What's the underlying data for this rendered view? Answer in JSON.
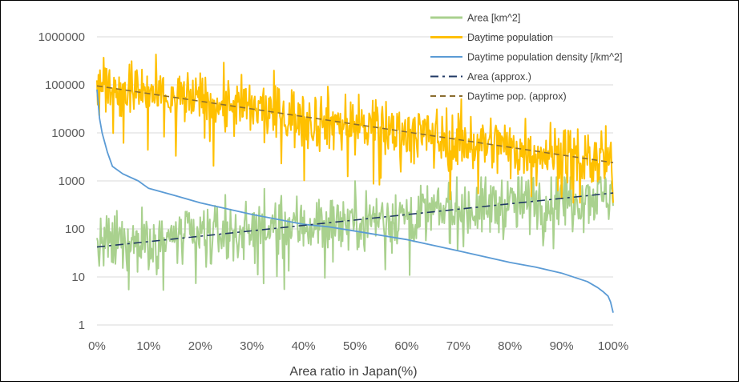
{
  "chart_data": {
    "type": "line",
    "title": "",
    "xlabel": "Area ratio in Japan(%)",
    "ylabel": "",
    "y_scale": "log",
    "xlim": [
      0,
      100
    ],
    "ylim": [
      1,
      1000000
    ],
    "grid": "horizontal",
    "legend_position": "top-right",
    "x_tick_labels": [
      "0%",
      "10%",
      "20%",
      "30%",
      "40%",
      "50%",
      "60%",
      "70%",
      "80%",
      "90%",
      "100%"
    ],
    "y_tick_labels": [
      "1",
      "10",
      "100",
      "1000",
      "10000",
      "100000",
      "1000000"
    ],
    "series": [
      {
        "name": "Area [km^2]",
        "color": "#a9d18e",
        "style": "solid",
        "x": [
          0,
          2,
          5,
          10,
          20,
          30,
          40,
          50,
          60,
          70,
          80,
          90,
          100
        ],
        "values": [
          40,
          45,
          50,
          55,
          70,
          90,
          120,
          150,
          190,
          240,
          320,
          420,
          550
        ],
        "noise_range": [
          4,
          1200
        ]
      },
      {
        "name": "Daytime population",
        "color": "#ffc000",
        "style": "solid",
        "x": [
          0,
          2,
          5,
          10,
          20,
          30,
          40,
          50,
          60,
          70,
          80,
          90,
          100
        ],
        "values": [
          95000,
          90000,
          78000,
          62000,
          45000,
          30000,
          20000,
          15000,
          10000,
          7000,
          5000,
          3500,
          2200
        ],
        "noise_range": [
          350,
          1000000
        ]
      },
      {
        "name": "Daytime population density [/km^2]",
        "color": "#5b9bd5",
        "style": "solid",
        "x": [
          0,
          0.5,
          1,
          2,
          3,
          5,
          8,
          10,
          15,
          20,
          30,
          40,
          45,
          50,
          60,
          70,
          80,
          85,
          90,
          95,
          97,
          98,
          99,
          99.5,
          100
        ],
        "values": [
          80000,
          20000,
          10000,
          4000,
          2000,
          1400,
          1000,
          700,
          500,
          350,
          200,
          125,
          110,
          90,
          60,
          35,
          20,
          16,
          12,
          8,
          6,
          5,
          4,
          3,
          1.8
        ]
      },
      {
        "name": "Area (approx.)",
        "color": "#203864",
        "style": "dash-dot",
        "x": [
          0,
          100
        ],
        "values": [
          42,
          560
        ]
      },
      {
        "name": "Daytime pop. (approx)",
        "color": "#8b6d2f",
        "style": "dashed",
        "x": [
          0,
          100
        ],
        "values": [
          95000,
          2400
        ]
      }
    ]
  }
}
